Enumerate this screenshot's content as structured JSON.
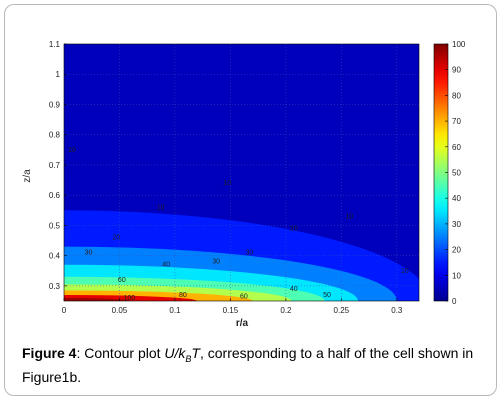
{
  "chart_data": {
    "type": "heatmap",
    "xlabel": "r/a",
    "ylabel": "z/a",
    "xlim": [
      0,
      0.32
    ],
    "ylim": [
      0.25,
      1.1
    ],
    "x_ticks": [
      "0",
      "0.05",
      "0.1",
      "0.15",
      "0.2",
      "0.25",
      "0.3"
    ],
    "x_tick_values": [
      0,
      0.05,
      0.1,
      0.15,
      0.2,
      0.25,
      0.3
    ],
    "y_ticks": [
      "0.3",
      "0.4",
      "0.5",
      "0.6",
      "0.7",
      "0.8",
      "0.9",
      "1",
      "1.1"
    ],
    "y_tick_values": [
      0.3,
      0.4,
      0.5,
      0.6,
      0.7,
      0.8,
      0.9,
      1.0,
      1.1
    ],
    "colorbar": {
      "min": 0,
      "max": 100,
      "ticks": [
        "0",
        "10",
        "20",
        "30",
        "40",
        "50",
        "60",
        "70",
        "80",
        "90",
        "100"
      ],
      "tick_values": [
        0,
        10,
        20,
        30,
        40,
        50,
        60,
        70,
        80,
        90,
        100
      ],
      "colormap": [
        "#00008f",
        "#0000ff",
        "#0080ff",
        "#00ffff",
        "#80ff80",
        "#ffff00",
        "#ff8000",
        "#ff0000",
        "#800000"
      ]
    },
    "contour_levels": [
      10,
      20,
      30,
      40,
      50,
      60,
      80,
      100
    ],
    "contour_labels": [
      {
        "text": "10",
        "x": 0.0,
        "z": 0.75
      },
      {
        "text": "10",
        "x": 0.08,
        "z": 0.56
      },
      {
        "text": "10",
        "x": 0.14,
        "z": 0.64
      },
      {
        "text": "10",
        "x": 0.25,
        "z": 0.53
      },
      {
        "text": "10",
        "x": 0.3,
        "z": 0.35
      },
      {
        "text": "20",
        "x": 0.04,
        "z": 0.46
      },
      {
        "text": "20",
        "x": 0.2,
        "z": 0.49
      },
      {
        "text": "30",
        "x": 0.015,
        "z": 0.41
      },
      {
        "text": "30",
        "x": 0.16,
        "z": 0.41
      },
      {
        "text": "30",
        "x": 0.13,
        "z": 0.38
      },
      {
        "text": "40",
        "x": 0.085,
        "z": 0.37
      },
      {
        "text": "40",
        "x": 0.2,
        "z": 0.29
      },
      {
        "text": "50",
        "x": 0.23,
        "z": 0.27
      },
      {
        "text": "60",
        "x": 0.045,
        "z": 0.32
      },
      {
        "text": "60",
        "x": 0.155,
        "z": 0.265
      },
      {
        "text": "80",
        "x": 0.1,
        "z": 0.27
      },
      {
        "text": "100",
        "x": 0.05,
        "z": 0.26
      }
    ]
  },
  "caption": {
    "label": "Figure 4",
    "text_before": ": Contour plot ",
    "math_u": "U/k",
    "math_sub": "B",
    "math_t": "T",
    "text_after": ", corresponding to a half of the cell shown in Figure1b."
  }
}
